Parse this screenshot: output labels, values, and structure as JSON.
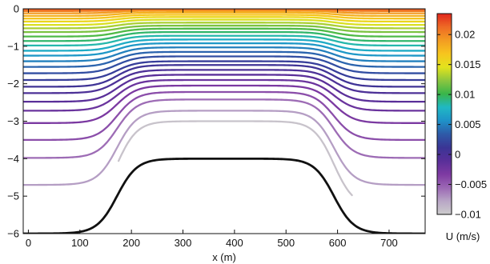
{
  "chart_data": {
    "type": "line",
    "xlabel": "x (m)",
    "ylabel": "",
    "xlim": [
      -10,
      770
    ],
    "ylim": [
      -6,
      0
    ],
    "x_ticks": [
      0,
      100,
      200,
      300,
      400,
      500,
      600,
      700
    ],
    "y_ticks": [
      0,
      -1,
      -2,
      -3,
      -4,
      -5,
      -6
    ],
    "grid": false,
    "colorbar": {
      "label": "U (m/s)",
      "range": [
        -0.01,
        0.0235
      ],
      "ticks": [
        0.02,
        0.015,
        0.01,
        0.005,
        0,
        -0.005,
        -0.01
      ],
      "tick_labels": [
        "0.02",
        "0.015",
        "0.01",
        "0.005",
        "0",
        "−0.005",
        "−0.01"
      ],
      "colors": [
        "#cccccc",
        "#b8a6c6",
        "#9b67b4",
        "#7e3aa2",
        "#592f99",
        "#3a3595",
        "#2e5aa8",
        "#1e92c8",
        "#20b8c4",
        "#39b54a",
        "#8cc63f",
        "#e3e31d",
        "#f7c51e",
        "#f39c22",
        "#ee6a25",
        "#e1261c"
      ]
    },
    "bottom_profile": {
      "color": "#111111",
      "shelf_depth": -6,
      "plateau_depth": -4,
      "left_slope_center_x": 172,
      "right_slope_center_x": 593,
      "slope_half_width": 62
    },
    "contour_depth_pairs": [
      {
        "level": -0.0095,
        "off": -5.3,
        "on": -3.0,
        "x_start": 175,
        "x_end": 628
      },
      {
        "level": -0.0075,
        "off": -4.7,
        "on": -2.72
      },
      {
        "level": -0.0057,
        "off": -3.98,
        "on": -2.42
      },
      {
        "level": -0.0043,
        "off": -3.5,
        "on": -2.22
      },
      {
        "level": -0.0031,
        "off": -3.05,
        "on": -2.05
      },
      {
        "level": -0.0021,
        "off": -2.72,
        "on": -1.9
      },
      {
        "level": -0.0011,
        "off": -2.48,
        "on": -1.76
      },
      {
        "level": -0.0002,
        "off": -2.25,
        "on": -1.63
      },
      {
        "level": 0.0007,
        "off": -2.08,
        "on": -1.5
      },
      {
        "level": 0.0017,
        "off": -1.9,
        "on": -1.4
      },
      {
        "level": 0.0027,
        "off": -1.72,
        "on": -1.27
      },
      {
        "level": 0.0038,
        "off": -1.55,
        "on": -1.15
      },
      {
        "level": 0.0049,
        "off": -1.4,
        "on": -1.03
      },
      {
        "level": 0.006,
        "off": -1.25,
        "on": -0.92
      },
      {
        "level": 0.0071,
        "off": -1.12,
        "on": -0.82
      },
      {
        "level": 0.0083,
        "off": -0.98,
        "on": -0.72
      },
      {
        "level": 0.0095,
        "off": -0.86,
        "on": -0.62
      },
      {
        "level": 0.0107,
        "off": -0.74,
        "on": -0.53
      },
      {
        "level": 0.0119,
        "off": -0.62,
        "on": -0.45
      },
      {
        "level": 0.0131,
        "off": -0.52,
        "on": -0.37
      },
      {
        "level": 0.0143,
        "off": -0.43,
        "on": -0.29
      },
      {
        "level": 0.0155,
        "off": -0.34,
        "on": -0.22
      },
      {
        "level": 0.0167,
        "off": -0.26,
        "on": -0.16
      },
      {
        "level": 0.0179,
        "off": -0.19,
        "on": -0.1
      },
      {
        "level": 0.0191,
        "off": -0.12,
        "on": -0.05
      },
      {
        "level": 0.0203,
        "off": -0.06,
        "on": -0.015
      },
      {
        "level": 0.0215,
        "off": -0.02,
        "on": -0.004
      }
    ]
  }
}
